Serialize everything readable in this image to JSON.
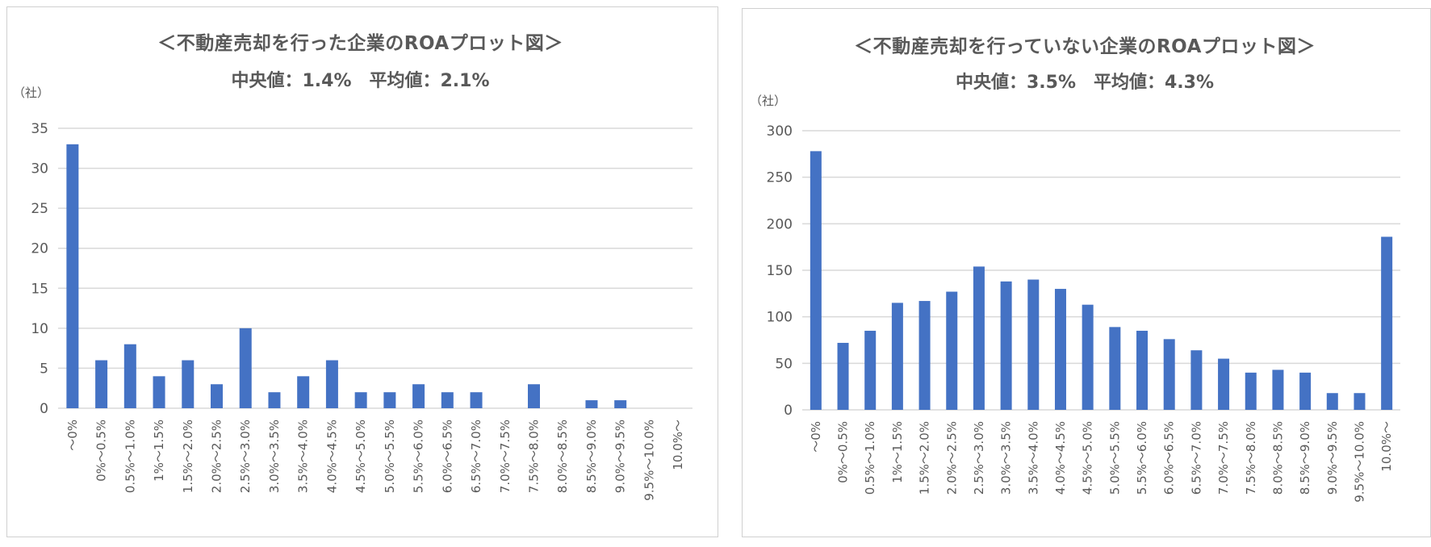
{
  "colors": {
    "bar": "#4472c4",
    "grid": "#d9d9d9",
    "text": "#595959"
  },
  "chart_data": [
    {
      "type": "bar",
      "title": "＜不動産売却を行った企業のROAプロット図＞",
      "subtitle": "中央値：1.4%　平均値：2.1%",
      "ylabel": "（社）",
      "xlabel": "",
      "ylim": [
        0,
        35
      ],
      "yticks": [
        0,
        5,
        10,
        15,
        20,
        25,
        30,
        35
      ],
      "grid": true,
      "legend": "none",
      "categories": [
        "～0%",
        "0%～0.5%",
        "0.5%～1.0%",
        "1%～1.5%",
        "1.5%～2.0%",
        "2.0%～2.5%",
        "2.5%～3.0%",
        "3.0%～3.5%",
        "3.5%～4.0%",
        "4.0%～4.5%",
        "4.5%～5.0%",
        "5.0%～5.5%",
        "5.5%～6.0%",
        "6.0%～6.5%",
        "6.5%～7.0%",
        "7.0%～7.5%",
        "7.5%～8.0%",
        "8.0%～8.5%",
        "8.5%～9.0%",
        "9.0%～9.5%",
        "9.5%～10.0%",
        "10.0%～"
      ],
      "values": [
        33,
        6,
        8,
        4,
        6,
        3,
        10,
        2,
        4,
        6,
        2,
        2,
        3,
        2,
        2,
        0,
        3,
        0,
        1,
        1,
        0,
        0
      ]
    },
    {
      "type": "bar",
      "title": "＜不動産売却を行っていない企業のROAプロット図＞",
      "subtitle": "中央値：3.5%　平均値：4.3%",
      "ylabel": "（社）",
      "xlabel": "",
      "ylim": [
        0,
        300
      ],
      "yticks": [
        0,
        50,
        100,
        150,
        200,
        250,
        300
      ],
      "grid": true,
      "legend": "none",
      "categories": [
        "～0%",
        "0%～0.5%",
        "0.5%～1.0%",
        "1%～1.5%",
        "1.5%～2.0%",
        "2.0%～2.5%",
        "2.5%～3.0%",
        "3.0%～3.5%",
        "3.5%～4.0%",
        "4.0%～4.5%",
        "4.5%～5.0%",
        "5.0%～5.5%",
        "5.5%～6.0%",
        "6.0%～6.5%",
        "6.5%～7.0%",
        "7.0%～7.5%",
        "7.5%～8.0%",
        "8.0%～8.5%",
        "8.5%～9.0%",
        "9.0%～9.5%",
        "9.5%～10.0%",
        "10.0%～"
      ],
      "values": [
        278,
        72,
        85,
        115,
        117,
        127,
        154,
        138,
        140,
        130,
        113,
        89,
        85,
        76,
        64,
        55,
        40,
        43,
        40,
        18,
        18,
        186
      ]
    }
  ]
}
